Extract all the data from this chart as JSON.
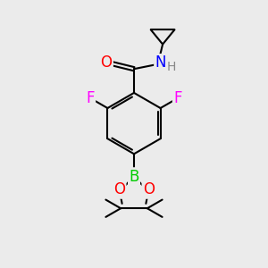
{
  "bg_color": "#ebebeb",
  "bond_color": "#000000",
  "bond_width": 1.5,
  "atom_colors": {
    "O": "#ff0000",
    "N": "#0000ff",
    "F": "#ff00ff",
    "B": "#00cc00",
    "H": "#888888",
    "C": "#000000"
  },
  "font_size": 11,
  "fig_size": [
    3.0,
    3.0
  ],
  "dpi": 100
}
